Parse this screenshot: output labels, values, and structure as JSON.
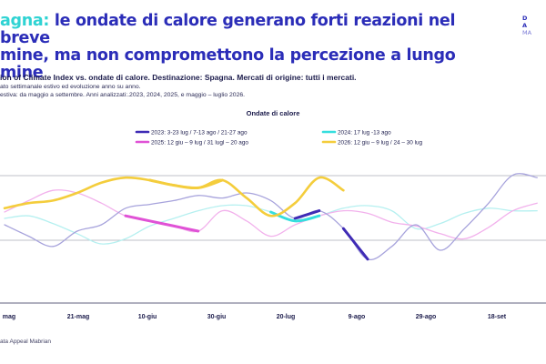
{
  "header": {
    "title_accent": "agna:",
    "title_rest": " le ondate di calore generano forti reazioni nel breve",
    "title_line2": "mine, ma non compromettono la percezione a lungo",
    "title_line3": "mine",
    "subtitle": "ion of Climate Index vs. ondate di calore. Destinazione: Spagna. Mercati di origine: tutti i mercati.",
    "note1": "ato settimanale estivo ed evoluzione anno su anno.",
    "note2": "estiva: da maggio a settembre. Anni analizzati:.2023, 2024, 2025, e maggio – luglio 2026."
  },
  "logo": {
    "line1": "D",
    "line2": "A",
    "line3": "MA"
  },
  "footer": {
    "source": "ata Appeal Mabrian"
  },
  "colors": {
    "title": "#2b2db8",
    "accent": "#2fd3d3",
    "s2023": "#3f2bb5",
    "s2024": "#36dede",
    "s2025": "#e052d6",
    "s2026": "#f4cd3c",
    "thin2023": "#a7a3dc",
    "thin2024": "#b5f0f0",
    "thin2025": "#f2b1ec",
    "grid": "#bfc1c8"
  },
  "chart_data": {
    "type": "line",
    "title": "Ondate di calore",
    "x_ticks": [
      "mag",
      "21-mag",
      "10-giu",
      "30-giu",
      "20-lug",
      "9-ago",
      "29-ago",
      "18-set"
    ],
    "legend": [
      {
        "series": "2023",
        "label": "2023: 3-23 lug / 7-13 ago / 21-27 ago"
      },
      {
        "series": "2024",
        "label": "2024: 17 lug -13 ago"
      },
      {
        "series": "2025",
        "label": "2025: 12 giu – 9 lug / 31 lugl – 20 ago"
      },
      {
        "series": "2026",
        "label": "2026: 12 giu – 9 lug / 24 – 30 lug"
      }
    ],
    "series": [
      {
        "name": "2023",
        "values": [
          45,
          36,
          28,
          40,
          45,
          58,
          61,
          64,
          68,
          66,
          70,
          64,
          50,
          56,
          42,
          18,
          28,
          45,
          25,
          42,
          62,
          84,
          82
        ],
        "heatwave_index": [
          [
            12,
            13
          ],
          [
            14,
            15
          ]
        ]
      },
      {
        "name": "2024",
        "values": [
          50,
          52,
          46,
          38,
          30,
          34,
          44,
          50,
          56,
          60,
          60,
          55,
          48,
          52,
          58,
          60,
          56,
          42,
          46,
          54,
          58,
          56,
          56
        ],
        "heatwave_index": [
          [
            11,
            13
          ]
        ]
      },
      {
        "name": "2025",
        "values": [
          55,
          64,
          72,
          70,
          62,
          52,
          48,
          44,
          40,
          56,
          48,
          36,
          45,
          52,
          56,
          54,
          47,
          44,
          38,
          34,
          43,
          56,
          62
        ],
        "heatwave_index": [
          [
            5,
            8
          ]
        ]
      },
      {
        "name": "2026",
        "values": [
          58,
          62,
          64,
          70,
          78,
          82,
          80,
          76,
          74,
          80,
          66,
          52,
          62,
          82,
          72
        ],
        "heatwave_index": [
          [
            6,
            9
          ]
        ]
      }
    ]
  }
}
